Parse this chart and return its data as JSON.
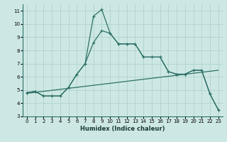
{
  "xlabel": "Humidex (Indice chaleur)",
  "bg_color": "#cde8e4",
  "grid_color": "#aaceca",
  "line_color": "#2e7068",
  "xlim": [
    -0.5,
    23.5
  ],
  "ylim": [
    3,
    11.5
  ],
  "yticks": [
    3,
    4,
    5,
    6,
    7,
    8,
    9,
    10,
    11
  ],
  "xticks": [
    0,
    1,
    2,
    3,
    4,
    5,
    6,
    7,
    8,
    9,
    10,
    11,
    12,
    13,
    14,
    15,
    16,
    17,
    18,
    19,
    20,
    21,
    22,
    23
  ],
  "curve1_x": [
    0,
    1,
    2,
    3,
    4,
    5,
    6,
    7,
    8,
    9,
    10,
    11,
    12,
    13,
    14,
    15,
    16,
    17,
    18,
    19,
    20,
    21,
    22,
    23
  ],
  "curve1_y": [
    4.8,
    4.9,
    4.55,
    4.55,
    4.55,
    5.2,
    6.2,
    7.0,
    10.6,
    11.1,
    9.3,
    8.5,
    8.5,
    8.5,
    7.5,
    7.5,
    7.5,
    6.4,
    6.2,
    6.2,
    6.5,
    6.5,
    4.7,
    3.5
  ],
  "curve2_x": [
    0,
    1,
    2,
    3,
    4,
    5,
    6,
    7,
    8,
    9,
    10,
    11,
    12,
    13,
    14,
    15,
    16,
    17,
    18,
    19,
    20,
    21,
    22,
    23
  ],
  "curve2_y": [
    4.8,
    4.9,
    4.55,
    4.55,
    4.55,
    5.2,
    6.2,
    7.0,
    8.6,
    9.5,
    9.3,
    8.5,
    8.5,
    8.5,
    7.5,
    7.5,
    7.5,
    6.4,
    6.2,
    6.2,
    6.5,
    6.5,
    4.7,
    3.5
  ],
  "curve3_x": [
    0,
    23
  ],
  "curve3_y": [
    4.75,
    6.5
  ]
}
